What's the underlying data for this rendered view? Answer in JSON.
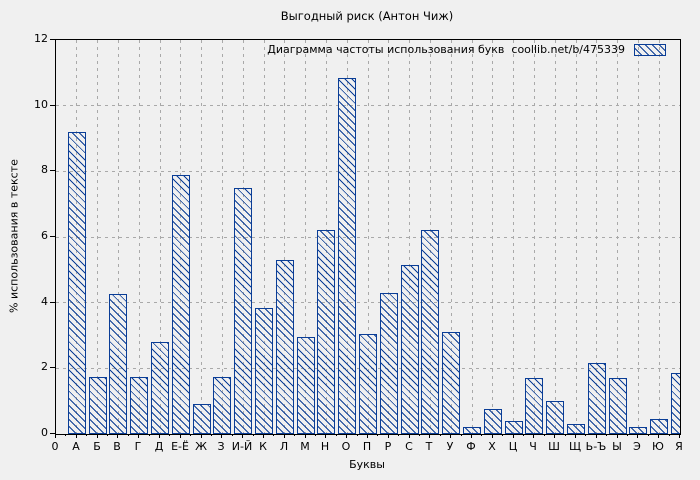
{
  "page": {
    "background": "#f0f0f0"
  },
  "chart_data": {
    "type": "bar",
    "title": "Выгодный риск (Антон Чиж)",
    "legend": {
      "label": "Диаграмма частоты использования букв  coollib.net/b/475339",
      "position": "top-right",
      "swatch": "blue-diagonal-hatch"
    },
    "xlabel": "Буквы",
    "ylabel": "% использования в тексте",
    "ylim": [
      0,
      12
    ],
    "ytick_labels": [
      "0",
      "2",
      "4",
      "6",
      "8",
      "10",
      "12"
    ],
    "x_origin_label": "0",
    "grid": true,
    "categories": [
      "А",
      "Б",
      "В",
      "Г",
      "Д",
      "Е-Ё",
      "Ж",
      "З",
      "И-Й",
      "К",
      "Л",
      "М",
      "Н",
      "О",
      "П",
      "Р",
      "С",
      "Т",
      "У",
      "Ф",
      "Х",
      "Ц",
      "Ч",
      "Ш",
      "Щ",
      "Ь-Ъ",
      "Ы",
      "Э",
      "Ю",
      "Я"
    ],
    "values": [
      9.2,
      1.75,
      4.25,
      1.75,
      2.8,
      7.9,
      0.9,
      1.75,
      7.5,
      3.85,
      5.3,
      2.95,
      6.2,
      10.85,
      3.05,
      4.3,
      5.15,
      6.2,
      3.1,
      0.2,
      0.75,
      0.4,
      1.7,
      1.0,
      0.3,
      2.15,
      1.7,
      0.2,
      0.45,
      1.85
    ],
    "colors": {
      "bar_border": "#0a3d96",
      "bar_hatch": "#0a3d96",
      "grid": "#a9a9a9",
      "axis": "#000000",
      "text": "#000000",
      "background": "#f0f0f0"
    }
  }
}
